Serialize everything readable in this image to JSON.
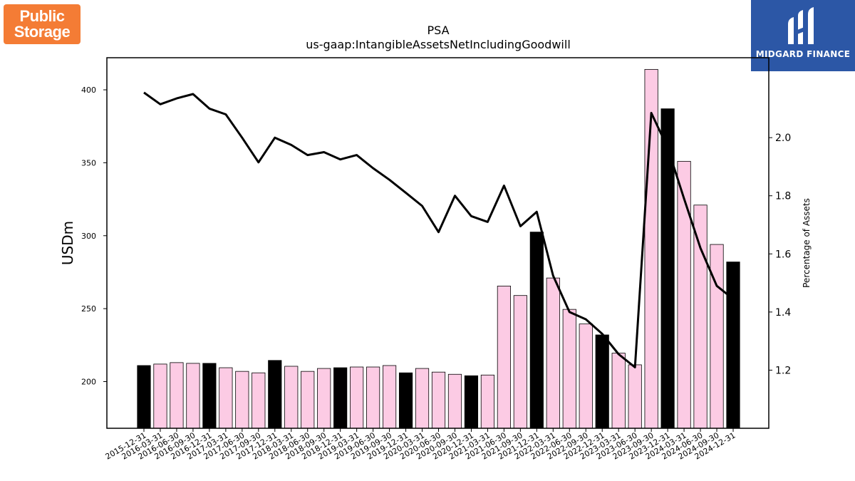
{
  "brand_left": {
    "line1": "Public",
    "line2": "Storage"
  },
  "brand_right": {
    "name": "MIDGARD FINANCE",
    "color": "#2c57a6"
  },
  "chart_data": {
    "type": "bar",
    "title": "PSA",
    "subtitle": "us-gaap:IntangibleAssetsNetIncludingGoodwill",
    "ylabel": "USDm",
    "y2label": "Percentage of Assets",
    "ylim": [
      168,
      422
    ],
    "y2lim": [
      1.0,
      2.275
    ],
    "yticks": [
      200,
      250,
      300,
      350,
      400
    ],
    "y2ticks": [
      "1.2",
      "1.4",
      "1.6",
      "1.8",
      "2.0"
    ],
    "bar_colors": {
      "quarter_end": "#fccbe4",
      "year_end": "#000000"
    },
    "categories": [
      "2015-12-31",
      "2016-03-31",
      "2016-06-30",
      "2016-09-30",
      "2016-12-31",
      "2017-03-31",
      "2017-06-30",
      "2017-09-30",
      "2017-12-31",
      "2018-03-31",
      "2018-06-30",
      "2018-09-30",
      "2018-12-31",
      "2019-03-31",
      "2019-06-30",
      "2019-09-30",
      "2019-12-31",
      "2020-03-31",
      "2020-06-30",
      "2020-09-30",
      "2020-12-31",
      "2021-03-31",
      "2021-06-30",
      "2021-09-30",
      "2021-12-31",
      "2022-03-31",
      "2022-06-30",
      "2022-09-30",
      "2022-12-31",
      "2023-03-31",
      "2023-06-30",
      "2023-09-30",
      "2023-12-31",
      "2024-03-31",
      "2024-06-30",
      "2024-09-30",
      "2024-12-31"
    ],
    "series": [
      {
        "type": "bar",
        "values": [
          211,
          212,
          213,
          212.5,
          212.5,
          209.5,
          207,
          206,
          214.5,
          210.5,
          207,
          209,
          209.5,
          210,
          210,
          211,
          206,
          209,
          206.5,
          205,
          204,
          204.5,
          265.5,
          259,
          302.5,
          271,
          249.5,
          239.5,
          232,
          219.5,
          211.5,
          414,
          387,
          351,
          321,
          294,
          282
        ]
      },
      {
        "type": "line",
        "values": [
          2.155,
          2.115,
          2.135,
          2.15,
          2.1,
          2.08,
          2.0,
          1.915,
          2.0,
          1.975,
          1.94,
          1.95,
          1.925,
          1.94,
          1.895,
          1.855,
          1.81,
          1.765,
          1.675,
          1.8,
          1.73,
          1.71,
          1.835,
          1.695,
          1.745,
          1.525,
          1.4,
          1.375,
          1.325,
          1.255,
          1.21,
          2.085,
          1.965,
          1.79,
          1.62,
          1.49,
          1.445
        ]
      }
    ]
  }
}
